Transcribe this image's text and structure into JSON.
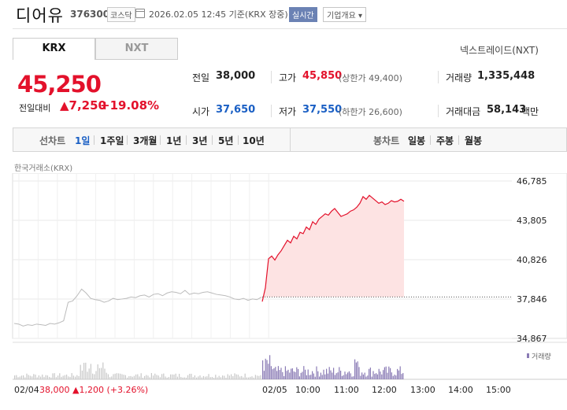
{
  "header": {
    "company_name": "디어유",
    "stock_code": "376300",
    "market_badge": "코스닥",
    "date_text": "2026.02.05 12:45  기준(KRX 장중)",
    "realtime_label": "실시간",
    "company_overview_label": "기업개요 ▾",
    "calendar_icon": "calendar-icon"
  },
  "tabs": [
    {
      "label": "KRX",
      "active": true
    },
    {
      "label": "NXT",
      "active": false
    }
  ],
  "nxt_link": "넥스트레이드(NXT)",
  "quote": {
    "price": "45,250",
    "change_label": "전일대비",
    "change_value": "▲7,250",
    "change_percent": "+19.08%",
    "color": "#e3112b"
  },
  "stats": {
    "prev_close_label": "전일",
    "prev_close": "38,000",
    "high_label": "고가",
    "high": "45,850",
    "upper_limit": "(상한가 49,400)",
    "volume_label": "거래량",
    "volume": "1,335,448",
    "open_label": "시가",
    "open": "37,650",
    "low_label": "저가",
    "low": "37,550",
    "lower_limit": "(하한가 26,600)",
    "trade_value_label": "거래대금",
    "trade_value": "58,143",
    "trade_value_unit": "백만"
  },
  "toolbar": {
    "line_chart_label": "선차트",
    "periods": [
      "1일",
      "1주일",
      "3개월",
      "1년",
      "3년",
      "5년",
      "10년"
    ],
    "selected_period": "1일",
    "candle_chart_label": "봉차트",
    "candle_periods": [
      "일봉",
      "주봉",
      "월봉"
    ]
  },
  "chart_data": {
    "type": "line",
    "source_label": "한국거래소(KRX)",
    "y_ticks": [
      "46,785",
      "43,805",
      "40,826",
      "37,846",
      "34,867"
    ],
    "ylim": [
      34867,
      46785
    ],
    "prev_close": 38000,
    "x_ticks": [
      "02/05",
      "10:00",
      "11:00",
      "12:00",
      "13:00",
      "14:00",
      "15:00"
    ],
    "previous_day": {
      "date": "02/04",
      "close_label": "38,000",
      "change_label": "▲1,200 (+3.26%)",
      "values": [
        36000,
        35950,
        35800,
        35900,
        35850,
        35950,
        35900,
        35850,
        36000,
        35950,
        36050,
        36200,
        37600,
        37700,
        38100,
        38600,
        38300,
        37900,
        37800,
        37750,
        37600,
        37700,
        37900,
        37800,
        37850,
        37900,
        38000,
        37950,
        38100,
        38150,
        38000,
        38200,
        38250,
        38100,
        38300,
        38400,
        38350,
        38250,
        38500,
        38200,
        38300,
        38250,
        38350,
        38400,
        38300,
        38200,
        38150,
        38100,
        38000,
        37850,
        37800,
        37900,
        37750,
        37850,
        37800,
        38000
      ]
    },
    "today": {
      "date": "02/05",
      "values": [
        37650,
        38700,
        40900,
        41100,
        40800,
        41200,
        41500,
        41900,
        42300,
        42100,
        42600,
        42400,
        42900,
        42800,
        43300,
        43100,
        43700,
        43500,
        43900,
        44100,
        44300,
        44200,
        44500,
        44700,
        44400,
        44100,
        44200,
        44300,
        44500,
        44600,
        44800,
        45100,
        45600,
        45400,
        45700,
        45500,
        45300,
        45100,
        45200,
        45000,
        45100,
        45300,
        45200,
        45250,
        45400,
        45250
      ],
      "line_color": "#e3112b",
      "fill_color": "#fde3e3"
    },
    "volume_label": "거래량",
    "volume_color": "#8a7bb5"
  }
}
